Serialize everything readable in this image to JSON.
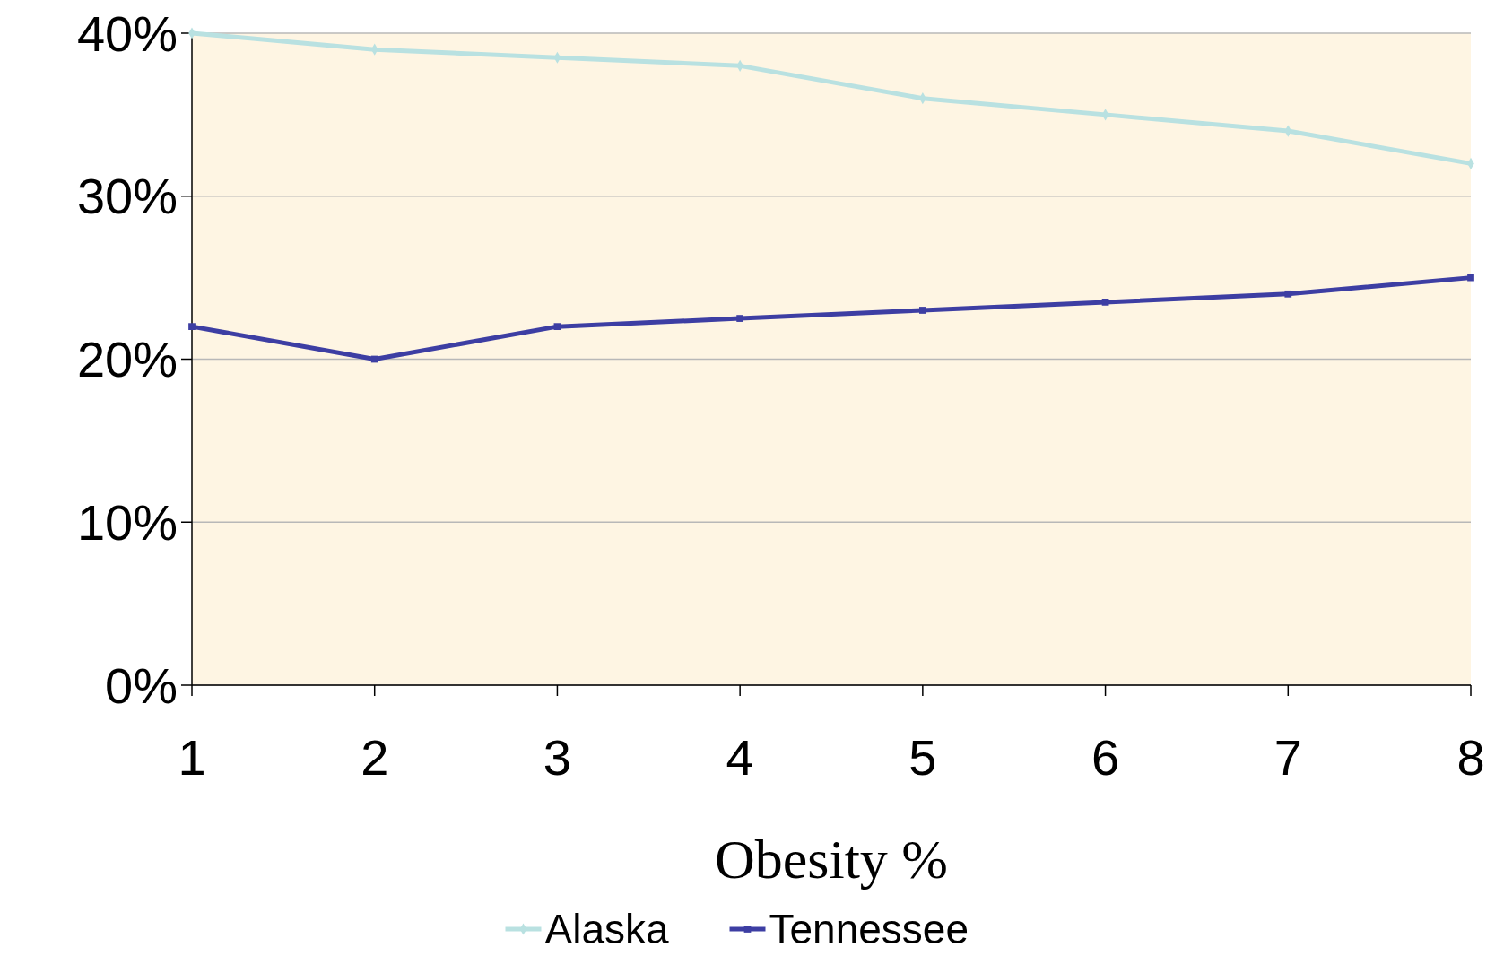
{
  "chart_data": {
    "type": "line",
    "xlabel": "Obesity %",
    "categories": [
      "1",
      "2",
      "3",
      "4",
      "5",
      "6",
      "7",
      "8"
    ],
    "series": [
      {
        "name": "Alaska",
        "color": "#b9e1e1",
        "marker": "diamond",
        "values": [
          40,
          39,
          38.5,
          38,
          36,
          35,
          34,
          32
        ]
      },
      {
        "name": "Tennessee",
        "color": "#3d3ea3",
        "marker": "square",
        "values": [
          22,
          20,
          22,
          22.5,
          23,
          23.5,
          24,
          25
        ]
      }
    ],
    "ylim": [
      0,
      40
    ],
    "yticks": [
      {
        "value": 0,
        "label": "0%"
      },
      {
        "value": 10,
        "label": "10%"
      },
      {
        "value": 20,
        "label": "20%"
      },
      {
        "value": 30,
        "label": "30%"
      },
      {
        "value": 40,
        "label": "40%"
      }
    ],
    "grid": "y",
    "legend": "bottom",
    "line_style": "solid"
  }
}
